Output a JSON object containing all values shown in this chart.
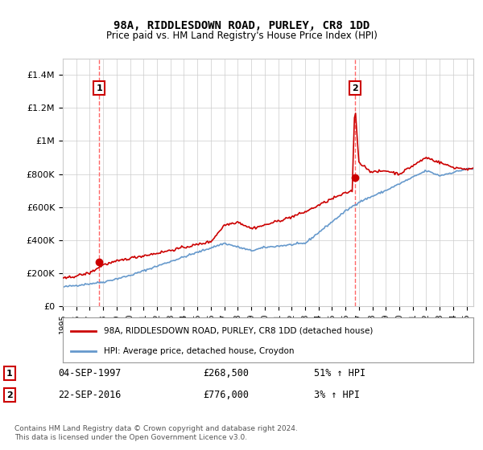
{
  "title1": "98A, RIDDLESDOWN ROAD, PURLEY, CR8 1DD",
  "title2": "Price paid vs. HM Land Registry's House Price Index (HPI)",
  "ylabel_ticks": [
    "£0",
    "£200K",
    "£400K",
    "£600K",
    "£800K",
    "£1M",
    "£1.2M",
    "£1.4M"
  ],
  "ylabel_values": [
    0,
    200000,
    400000,
    600000,
    800000,
    1000000,
    1200000,
    1400000
  ],
  "ylim": [
    0,
    1500000
  ],
  "xlim_start": 1995.5,
  "xlim_end": 2025.5,
  "sale1_year": 1997.7,
  "sale1_price": 268500,
  "sale1_label": "1",
  "sale1_date": "04-SEP-1997",
  "sale1_pct": "51% ↑ HPI",
  "sale2_year": 2016.7,
  "sale2_price": 776000,
  "sale2_label": "2",
  "sale2_date": "22-SEP-2016",
  "sale2_pct": "3% ↑ HPI",
  "legend_label_red": "98A, RIDDLESDOWN ROAD, PURLEY, CR8 1DD (detached house)",
  "legend_label_blue": "HPI: Average price, detached house, Croydon",
  "footnote": "Contains HM Land Registry data © Crown copyright and database right 2024.\nThis data is licensed under the Open Government Licence v3.0.",
  "red_color": "#cc0000",
  "blue_color": "#6699cc",
  "dashed_color": "#ff6666",
  "marker_color": "#cc0000",
  "background_color": "#ffffff",
  "grid_color": "#cccccc",
  "annotation_box_color": "#cc0000"
}
